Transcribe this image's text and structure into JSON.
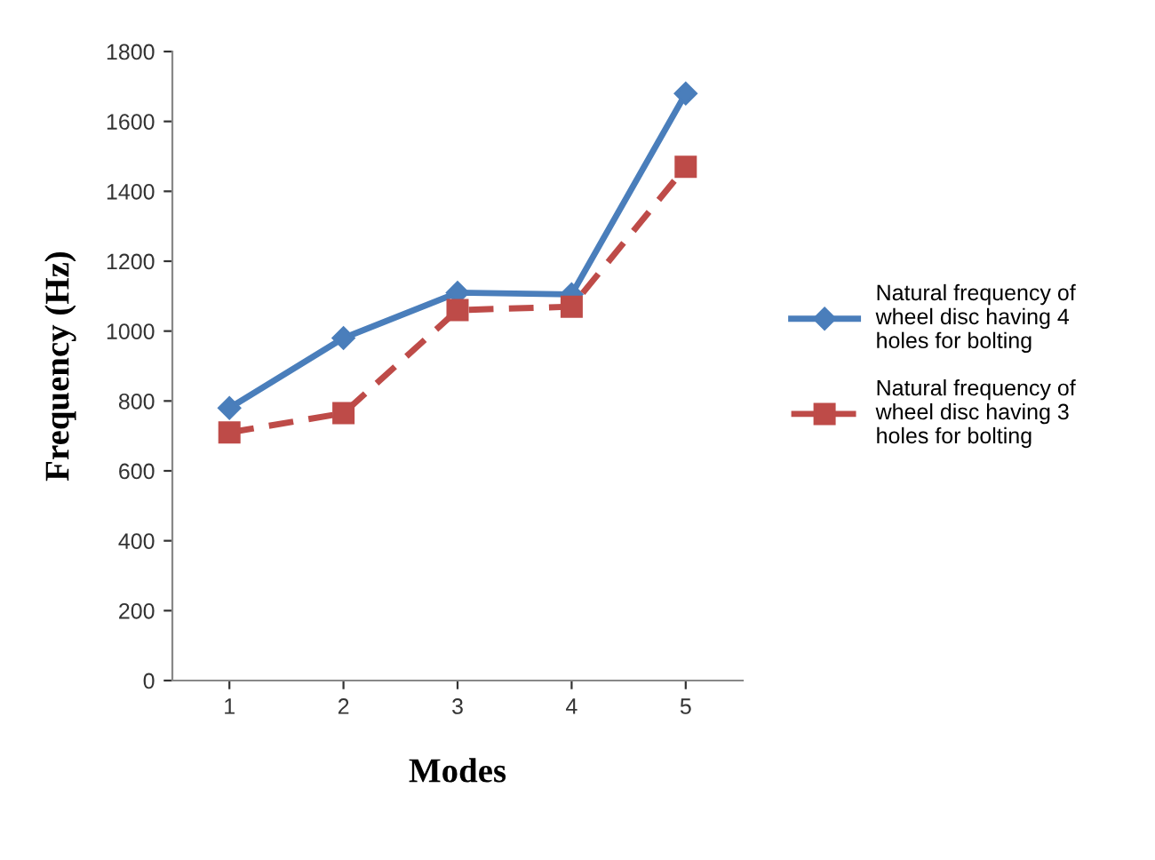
{
  "chart_data": {
    "type": "line",
    "xlabel": "Modes",
    "ylabel": "Frequency (Hz)",
    "categories": [
      "1",
      "2",
      "3",
      "4",
      "5"
    ],
    "series": [
      {
        "name": "Natural frequency of wheel disc having 4 holes for bolting",
        "color": "#4a7ebb",
        "values": [
          780,
          980,
          1110,
          1105,
          1680
        ],
        "marker": "diamond",
        "line_style": "solid"
      },
      {
        "name": "Natural frequency of wheel disc having 3 holes for bolting",
        "color": "#be4b48",
        "values": [
          710,
          765,
          1060,
          1070,
          1470
        ],
        "marker": "square",
        "line_style": "dashed"
      }
    ],
    "ylim": [
      0,
      1800
    ],
    "yticks": [
      0,
      200,
      400,
      600,
      800,
      1000,
      1200,
      1400,
      1600,
      1800
    ],
    "grid": false,
    "legend": "right"
  }
}
